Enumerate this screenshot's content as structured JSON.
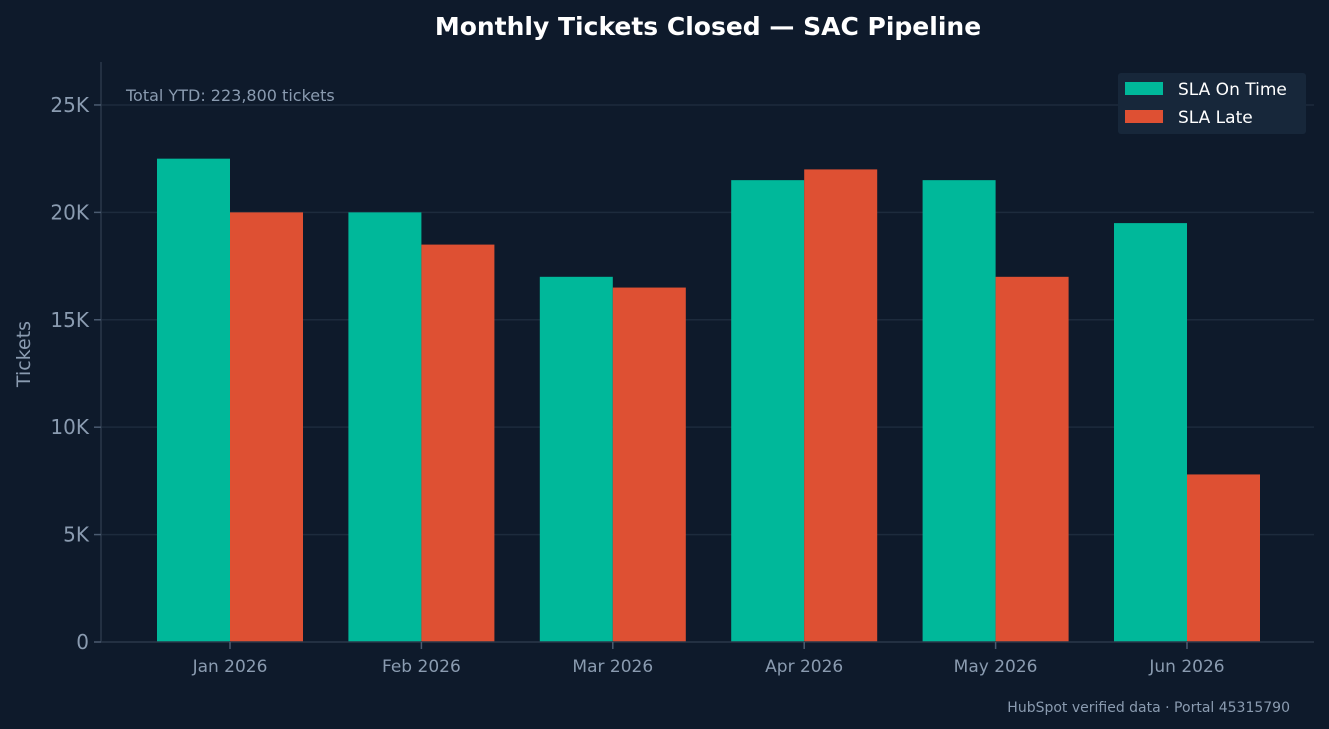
{
  "chart_data": {
    "type": "bar",
    "title": "Monthly Tickets Closed — SAC Pipeline",
    "xlabel": "",
    "ylabel": "Tickets",
    "categories": [
      "Jan 2026",
      "Feb 2026",
      "Mar 2026",
      "Apr 2026",
      "May 2026",
      "Jun 2026"
    ],
    "series": [
      {
        "name": "SLA On Time",
        "color": "#00b89a",
        "values": [
          22500,
          20000,
          17000,
          21500,
          21500,
          19500
        ]
      },
      {
        "name": "SLA Late",
        "color": "#de5033",
        "values": [
          20000,
          18500,
          16500,
          22000,
          17000,
          7800
        ]
      }
    ],
    "ylim": [
      0,
      27000
    ],
    "yticks": [
      0,
      5000,
      10000,
      15000,
      20000,
      25000
    ],
    "ytick_labels": [
      "0",
      "5K",
      "10K",
      "15K",
      "20K",
      "25K"
    ],
    "grid": true,
    "legend_position": "top-right",
    "annotation": "Total YTD: 223,800 tickets",
    "footer": "HubSpot verified data · Portal 45315790"
  }
}
